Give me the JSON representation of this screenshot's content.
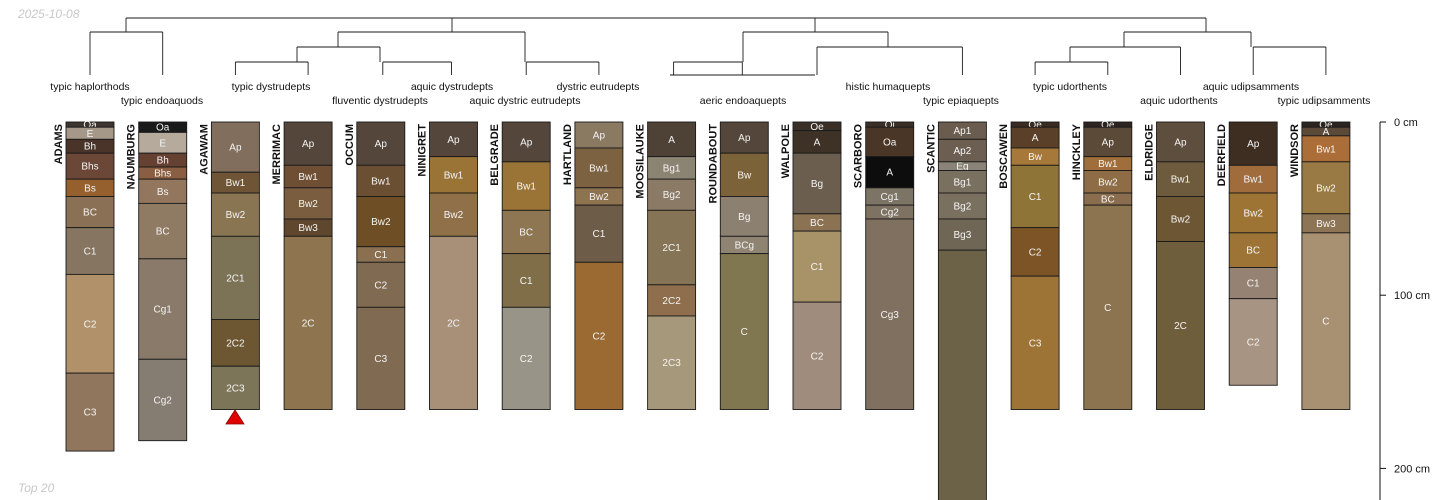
{
  "header": {
    "date": "2025-10-08"
  },
  "footer": {
    "note": "Top 20"
  },
  "depth_axis": {
    "unit": "cm",
    "ticks": [
      0,
      100,
      200
    ],
    "tick_labels": [
      "0 cm",
      "100 cm",
      "200 cm"
    ]
  },
  "clusters": [
    {
      "name": "typic haplorthods",
      "profiles": [
        0
      ]
    },
    {
      "name": "typic endoaquods",
      "profiles": [
        1
      ]
    },
    {
      "name": "typic dystrudepts",
      "profiles": [
        2,
        3
      ]
    },
    {
      "name": "fluventic dystrudepts",
      "profiles": [
        4
      ]
    },
    {
      "name": "aquic dystrudepts",
      "profiles": [
        5
      ]
    },
    {
      "name": "aquic dystric eutrudepts",
      "profiles": [
        6
      ]
    },
    {
      "name": "dystric eutrudepts",
      "profiles": [
        7
      ]
    },
    {
      "name": "aeric endoaquepts",
      "profiles": [
        8,
        9
      ]
    },
    {
      "name": "histic humaquepts",
      "profiles": [
        10,
        11
      ]
    },
    {
      "name": "typic epiaquepts",
      "profiles": [
        12
      ]
    },
    {
      "name": "typic udorthents",
      "profiles": [
        13,
        14
      ]
    },
    {
      "name": "aquic udorthents",
      "profiles": [
        15
      ]
    },
    {
      "name": "aquic udipsamments",
      "profiles": [
        16
      ]
    },
    {
      "name": "typic udipsamments",
      "profiles": [
        17
      ]
    }
  ],
  "profiles": [
    {
      "name": "ADAMS",
      "horizons": [
        {
          "name": "Oa",
          "top": 0,
          "bottom": 3,
          "color": "#3d3630"
        },
        {
          "name": "E",
          "top": 3,
          "bottom": 10,
          "color": "#a59889"
        },
        {
          "name": "Bh",
          "top": 10,
          "bottom": 18,
          "color": "#4a3328"
        },
        {
          "name": "Bhs",
          "top": 18,
          "bottom": 33,
          "color": "#6a4737"
        },
        {
          "name": "Bs",
          "top": 33,
          "bottom": 43,
          "color": "#95602e"
        },
        {
          "name": "BC",
          "top": 43,
          "bottom": 61,
          "color": "#8a7054"
        },
        {
          "name": "C1",
          "top": 61,
          "bottom": 88,
          "color": "#867560"
        },
        {
          "name": "C2",
          "top": 88,
          "bottom": 145,
          "color": "#b0916a"
        },
        {
          "name": "C3",
          "top": 145,
          "bottom": 190,
          "color": "#8f765d"
        }
      ]
    },
    {
      "name": "NAUMBURG",
      "horizons": [
        {
          "name": "Oa",
          "top": 0,
          "bottom": 6,
          "color": "#1a1a1a"
        },
        {
          "name": "E",
          "top": 6,
          "bottom": 18,
          "color": "#b5aa9c"
        },
        {
          "name": "Bh",
          "top": 18,
          "bottom": 26,
          "color": "#644131"
        },
        {
          "name": "Bhs",
          "top": 26,
          "bottom": 33,
          "color": "#8a5e42"
        },
        {
          "name": "Bs",
          "top": 33,
          "bottom": 47,
          "color": "#93765e"
        },
        {
          "name": "BC",
          "top": 47,
          "bottom": 79,
          "color": "#8f7a64"
        },
        {
          "name": "Cg1",
          "top": 79,
          "bottom": 137,
          "color": "#8a7a6a"
        },
        {
          "name": "Cg2",
          "top": 137,
          "bottom": 184,
          "color": "#857c72"
        }
      ]
    },
    {
      "name": "AGAWAM",
      "horizons": [
        {
          "name": "Ap",
          "top": 0,
          "bottom": 29,
          "color": "#826e5c"
        },
        {
          "name": "Bw1",
          "top": 29,
          "bottom": 41,
          "color": "#6f5535"
        },
        {
          "name": "Bw2",
          "top": 41,
          "bottom": 66,
          "color": "#8a7552"
        },
        {
          "name": "2C1",
          "top": 66,
          "bottom": 114,
          "color": "#7c7255"
        },
        {
          "name": "2C2",
          "top": 114,
          "bottom": 141,
          "color": "#6d5632"
        },
        {
          "name": "2C3",
          "top": 141,
          "bottom": 166,
          "color": "#7d7558"
        }
      ]
    },
    {
      "name": "MERRIMAC",
      "horizons": [
        {
          "name": "Ap",
          "top": 0,
          "bottom": 25,
          "color": "#54463a"
        },
        {
          "name": "Bw1",
          "top": 25,
          "bottom": 38,
          "color": "#6e4f33"
        },
        {
          "name": "Bw2",
          "top": 38,
          "bottom": 56,
          "color": "#7a5c3e"
        },
        {
          "name": "Bw3",
          "top": 56,
          "bottom": 66,
          "color": "#5f472e"
        },
        {
          "name": "2C",
          "top": 66,
          "bottom": 166,
          "color": "#8f7450"
        }
      ]
    },
    {
      "name": "OCCUM",
      "horizons": [
        {
          "name": "Ap",
          "top": 0,
          "bottom": 25,
          "color": "#54463a"
        },
        {
          "name": "Bw1",
          "top": 25,
          "bottom": 43,
          "color": "#6a4f33"
        },
        {
          "name": "Bw2",
          "top": 43,
          "bottom": 72,
          "color": "#6e4e24"
        },
        {
          "name": "C1",
          "top": 72,
          "bottom": 81,
          "color": "#8a7050"
        },
        {
          "name": "C2",
          "top": 81,
          "bottom": 107,
          "color": "#806a52"
        },
        {
          "name": "C3",
          "top": 107,
          "bottom": 166,
          "color": "#806b52"
        }
      ]
    },
    {
      "name": "NINIGRET",
      "horizons": [
        {
          "name": "Ap",
          "top": 0,
          "bottom": 20,
          "color": "#54463a"
        },
        {
          "name": "Bw1",
          "top": 20,
          "bottom": 41,
          "color": "#9a7436"
        },
        {
          "name": "Bw2",
          "top": 41,
          "bottom": 66,
          "color": "#907048"
        },
        {
          "name": "2C",
          "top": 66,
          "bottom": 166,
          "color": "#a89078"
        }
      ]
    },
    {
      "name": "BELGRADE",
      "horizons": [
        {
          "name": "Ap",
          "top": 0,
          "bottom": 23,
          "color": "#54463a"
        },
        {
          "name": "Bw1",
          "top": 23,
          "bottom": 51,
          "color": "#9a7436"
        },
        {
          "name": "BC",
          "top": 51,
          "bottom": 76,
          "color": "#8e7652"
        },
        {
          "name": "C1",
          "top": 76,
          "bottom": 107,
          "color": "#806e48"
        },
        {
          "name": "C2",
          "top": 107,
          "bottom": 166,
          "color": "#999488"
        }
      ]
    },
    {
      "name": "HARTLAND",
      "horizons": [
        {
          "name": "Ap",
          "top": 0,
          "bottom": 15,
          "color": "#8a7a62"
        },
        {
          "name": "Bw1",
          "top": 15,
          "bottom": 38,
          "color": "#7c6240"
        },
        {
          "name": "Bw2",
          "top": 38,
          "bottom": 48,
          "color": "#8e7350"
        },
        {
          "name": "C1",
          "top": 48,
          "bottom": 81,
          "color": "#6c5c48"
        },
        {
          "name": "C2",
          "top": 81,
          "bottom": 166,
          "color": "#9b6a32"
        }
      ]
    },
    {
      "name": "MOOSILAUKE",
      "horizons": [
        {
          "name": "A",
          "top": 0,
          "bottom": 20,
          "color": "#4e4236"
        },
        {
          "name": "Bg1",
          "top": 20,
          "bottom": 33,
          "color": "#8c8472"
        },
        {
          "name": "Bg2",
          "top": 33,
          "bottom": 51,
          "color": "#8a7a66"
        },
        {
          "name": "2C1",
          "top": 51,
          "bottom": 94,
          "color": "#857556"
        },
        {
          "name": "2C2",
          "top": 94,
          "bottom": 112,
          "color": "#8e6e4c"
        },
        {
          "name": "2C3",
          "top": 112,
          "bottom": 166,
          "color": "#a6987a"
        }
      ]
    },
    {
      "name": "ROUNDABOUT",
      "horizons": [
        {
          "name": "Ap",
          "top": 0,
          "bottom": 18,
          "color": "#54463a"
        },
        {
          "name": "Bw",
          "top": 18,
          "bottom": 43,
          "color": "#7c6238"
        },
        {
          "name": "Bg",
          "top": 43,
          "bottom": 66,
          "color": "#8c8070"
        },
        {
          "name": "BCg",
          "top": 66,
          "bottom": 76,
          "color": "#8f8472"
        },
        {
          "name": "C",
          "top": 76,
          "bottom": 166,
          "color": "#807650"
        }
      ]
    },
    {
      "name": "WALPOLE",
      "horizons": [
        {
          "name": "Oe",
          "top": 0,
          "bottom": 5,
          "color": "#3a3028"
        },
        {
          "name": "A",
          "top": 5,
          "bottom": 18,
          "color": "#3e3226"
        },
        {
          "name": "Bg",
          "top": 18,
          "bottom": 53,
          "color": "#6c5e4e"
        },
        {
          "name": "BC",
          "top": 53,
          "bottom": 63,
          "color": "#8a7252"
        },
        {
          "name": "C1",
          "top": 63,
          "bottom": 104,
          "color": "#a89268"
        },
        {
          "name": "C2",
          "top": 104,
          "bottom": 166,
          "color": "#a08c7c"
        }
      ]
    },
    {
      "name": "SCARBORO",
      "horizons": [
        {
          "name": "Oi",
          "top": 0,
          "bottom": 3,
          "color": "#3a3028"
        },
        {
          "name": "Oa",
          "top": 3,
          "bottom": 20,
          "color": "#4a3626"
        },
        {
          "name": "A",
          "top": 20,
          "bottom": 38,
          "color": "#0d0d0d"
        },
        {
          "name": "Cg1",
          "top": 38,
          "bottom": 48,
          "color": "#7c7464"
        },
        {
          "name": "Cg2",
          "top": 48,
          "bottom": 56,
          "color": "#7e7262"
        },
        {
          "name": "Cg3",
          "top": 56,
          "bottom": 166,
          "color": "#807060"
        }
      ]
    },
    {
      "name": "SCANTIC",
      "horizons": [
        {
          "name": "Ap1",
          "top": 0,
          "bottom": 10,
          "color": "#6a5c4e"
        },
        {
          "name": "Ap2",
          "top": 10,
          "bottom": 23,
          "color": "#6c5e50"
        },
        {
          "name": "Eg",
          "top": 23,
          "bottom": 28,
          "color": "#8a8478"
        },
        {
          "name": "Bg1",
          "top": 28,
          "bottom": 41,
          "color": "#7a7060"
        },
        {
          "name": "Bg2",
          "top": 41,
          "bottom": 56,
          "color": "#7a7060"
        },
        {
          "name": "Bg3",
          "top": 56,
          "bottom": 74,
          "color": "#6f6656"
        },
        {
          "name": "",
          "top": 74,
          "bottom": 220,
          "color": "#6c6248"
        }
      ]
    },
    {
      "name": "BOSCAWEN",
      "horizons": [
        {
          "name": "Oe",
          "top": 0,
          "bottom": 3,
          "color": "#3a2c22"
        },
        {
          "name": "A",
          "top": 3,
          "bottom": 15,
          "color": "#5a4028"
        },
        {
          "name": "Bw",
          "top": 15,
          "bottom": 25,
          "color": "#a6783a"
        },
        {
          "name": "C1",
          "top": 25,
          "bottom": 61,
          "color": "#8f7438"
        },
        {
          "name": "C2",
          "top": 61,
          "bottom": 89,
          "color": "#7c5426"
        },
        {
          "name": "C3",
          "top": 89,
          "bottom": 166,
          "color": "#9e7436"
        }
      ]
    },
    {
      "name": "HINCKLEY",
      "horizons": [
        {
          "name": "Oe",
          "top": 0,
          "bottom": 3,
          "color": "#2c241e"
        },
        {
          "name": "Ap",
          "top": 3,
          "bottom": 20,
          "color": "#5c4a38"
        },
        {
          "name": "Bw1",
          "top": 20,
          "bottom": 28,
          "color": "#a06e3a"
        },
        {
          "name": "Bw2",
          "top": 28,
          "bottom": 41,
          "color": "#8e6c46"
        },
        {
          "name": "BC",
          "top": 41,
          "bottom": 48,
          "color": "#8a6c4e"
        },
        {
          "name": "C",
          "top": 48,
          "bottom": 166,
          "color": "#8c7450"
        }
      ]
    },
    {
      "name": "ELDRIDGE",
      "horizons": [
        {
          "name": "Ap",
          "top": 0,
          "bottom": 23,
          "color": "#5e4e3e"
        },
        {
          "name": "Bw1",
          "top": 23,
          "bottom": 43,
          "color": "#6e5a3c"
        },
        {
          "name": "Bw2",
          "top": 43,
          "bottom": 69,
          "color": "#6c5634"
        },
        {
          "name": "2C",
          "top": 69,
          "bottom": 166,
          "color": "#6e5e3c"
        }
      ]
    },
    {
      "name": "DEERFIELD",
      "horizons": [
        {
          "name": "Ap",
          "top": 0,
          "bottom": 25,
          "color": "#3e2e22"
        },
        {
          "name": "Bw1",
          "top": 25,
          "bottom": 41,
          "color": "#a06c3c"
        },
        {
          "name": "Bw2",
          "top": 41,
          "bottom": 64,
          "color": "#9e7434"
        },
        {
          "name": "BC",
          "top": 64,
          "bottom": 84,
          "color": "#9e7436"
        },
        {
          "name": "C1",
          "top": 84,
          "bottom": 102,
          "color": "#968272"
        },
        {
          "name": "C2",
          "top": 102,
          "bottom": 152,
          "color": "#a89482"
        }
      ]
    },
    {
      "name": "WINDSOR",
      "horizons": [
        {
          "name": "Oe",
          "top": 0,
          "bottom": 3,
          "color": "#2c241e"
        },
        {
          "name": "A",
          "top": 3,
          "bottom": 8,
          "color": "#5c4a38"
        },
        {
          "name": "Bw1",
          "top": 8,
          "bottom": 23,
          "color": "#ac6e38"
        },
        {
          "name": "Bw2",
          "top": 23,
          "bottom": 53,
          "color": "#9a7a44"
        },
        {
          "name": "Bw3",
          "top": 53,
          "bottom": 64,
          "color": "#8c7454"
        },
        {
          "name": "C",
          "top": 64,
          "bottom": 166,
          "color": "#a89072"
        }
      ]
    }
  ]
}
